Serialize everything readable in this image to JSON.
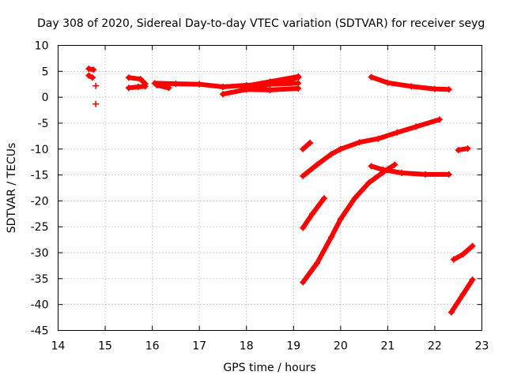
{
  "chart_data": {
    "type": "scatter",
    "title": "Day 308 of 2020, Sidereal Day-to-day VTEC variation (SDTVAR) for receiver seyg",
    "xlabel": "GPS time / hours",
    "ylabel": "SDTVAR / TECUs",
    "xlim": [
      14,
      23
    ],
    "ylim": [
      -45,
      10
    ],
    "x_ticks": [
      14,
      15,
      16,
      17,
      18,
      19,
      20,
      21,
      22,
      23
    ],
    "y_ticks": [
      10,
      5,
      0,
      -5,
      -10,
      -15,
      -20,
      -25,
      -30,
      -35,
      -40,
      -45
    ],
    "grid": true,
    "marker": "+",
    "color": "#ff0000",
    "tracks": [
      {
        "x": [
          14.65,
          14.75
        ],
        "y": [
          5.5,
          5.3
        ]
      },
      {
        "x": [
          14.65,
          14.73
        ],
        "y": [
          4.2,
          3.8
        ]
      },
      {
        "x": [
          14.8
        ],
        "y": [
          2.2
        ]
      },
      {
        "x": [
          14.8
        ],
        "y": [
          -1.3
        ]
      },
      {
        "x": [
          15.5,
          15.75,
          15.85
        ],
        "y": [
          3.8,
          3.5,
          2.6
        ]
      },
      {
        "x": [
          15.5,
          15.7,
          15.85
        ],
        "y": [
          1.8,
          2.0,
          2.1
        ]
      },
      {
        "x": [
          16.05,
          16.5,
          17.0,
          17.5,
          18.0,
          18.5,
          19.1
        ],
        "y": [
          2.7,
          2.6,
          2.5,
          2.0,
          2.3,
          2.5,
          2.7
        ]
      },
      {
        "x": [
          16.1,
          16.35
        ],
        "y": [
          2.3,
          1.8
        ]
      },
      {
        "x": [
          17.5,
          18.0,
          18.5,
          19.1
        ],
        "y": [
          0.6,
          1.5,
          2.5,
          3.8
        ]
      },
      {
        "x": [
          17.9,
          18.5,
          19.1
        ],
        "y": [
          1.5,
          1.4,
          1.7
        ]
      },
      {
        "x": [
          18.0,
          18.5,
          19.1
        ],
        "y": [
          2.2,
          3.0,
          4.0
        ]
      },
      {
        "x": [
          19.2,
          19.35
        ],
        "y": [
          -10.0,
          -8.8
        ]
      },
      {
        "x": [
          19.2,
          19.5,
          19.8,
          20.0,
          20.4,
          20.8,
          21.2,
          21.6,
          22.1
        ],
        "y": [
          -15.2,
          -13.0,
          -11.0,
          -10.0,
          -8.7,
          -8.0,
          -6.8,
          -5.7,
          -4.3
        ]
      },
      {
        "x": [
          19.2,
          19.4,
          19.65
        ],
        "y": [
          -25.2,
          -22.5,
          -19.5
        ]
      },
      {
        "x": [
          19.2,
          19.5,
          19.8,
          20.0,
          20.3,
          20.6,
          20.9,
          21.15
        ],
        "y": [
          -35.7,
          -32.0,
          -27.0,
          -23.5,
          -19.5,
          -16.5,
          -14.5,
          -13.0
        ]
      },
      {
        "x": [
          20.65,
          20.9,
          21.3,
          21.8,
          22.3
        ],
        "y": [
          -13.3,
          -14.0,
          -14.6,
          -14.9,
          -14.9
        ]
      },
      {
        "x": [
          20.65,
          21.0,
          21.5,
          22.0,
          22.3
        ],
        "y": [
          3.9,
          2.8,
          2.1,
          1.6,
          1.5
        ]
      },
      {
        "x": [
          22.5,
          22.7
        ],
        "y": [
          -10.2,
          -9.9
        ]
      },
      {
        "x": [
          22.4,
          22.6,
          22.8
        ],
        "y": [
          -31.3,
          -30.3,
          -28.7
        ]
      },
      {
        "x": [
          22.35,
          22.6,
          22.8
        ],
        "y": [
          -41.5,
          -38.0,
          -35.2
        ]
      }
    ]
  }
}
